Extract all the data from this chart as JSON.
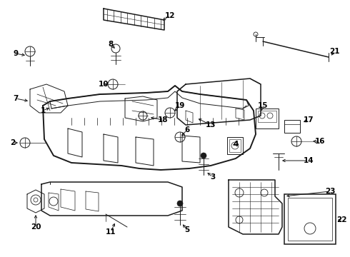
{
  "bg_color": "#ffffff",
  "line_color": "#1a1a1a",
  "text_color": "#000000",
  "fig_width": 4.9,
  "fig_height": 3.6,
  "dpi": 100,
  "lw_main": 1.1,
  "lw_thin": 0.7,
  "lw_thick": 1.4,
  "font_size": 7.5
}
